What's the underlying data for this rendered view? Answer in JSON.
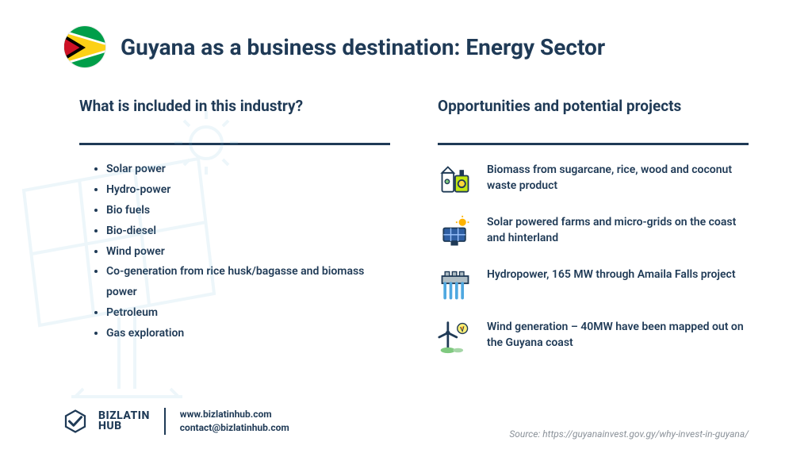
{
  "header": {
    "title": "Guyana as a business destination: Energy Sector",
    "flag_colors": {
      "green": "#009E49",
      "white": "#FFFFFF",
      "yellow": "#FCD116",
      "black": "#000000",
      "red": "#CE1126"
    }
  },
  "left": {
    "subhead": "What is included in this industry?",
    "items": [
      "Solar power",
      "Hydro-power",
      "Bio fuels",
      "Bio-diesel",
      "Wind power",
      "Co-generation from rice husk/bagasse and biomass power",
      "Petroleum",
      "Gas exploration"
    ]
  },
  "right": {
    "subhead": "Opportunities and potential projects",
    "items": [
      {
        "icon": "biomass",
        "text": "Biomass from sugarcane, rice, wood and coconut waste product"
      },
      {
        "icon": "solar",
        "text": "Solar powered farms and micro-grids on the coast and hinterland"
      },
      {
        "icon": "hydro",
        "text": "Hydropower, 165 MW through Amaila Falls project"
      },
      {
        "icon": "wind",
        "text": "Wind generation – 40MW have been mapped out on the Guyana coast"
      }
    ]
  },
  "footer": {
    "brand_top": "BIZLATIN",
    "brand_bottom": "HUB",
    "website": "www.bizlatinhub.com",
    "email": "contact@bizlatinhub.com"
  },
  "source": "Source: https://guyanainvest.gov.gy/why-invest-in-guyana/",
  "colors": {
    "text": "#1f3a56",
    "bg": "#ffffff",
    "muted": "#8a9199",
    "bg_lineart": "#d4e9f5"
  }
}
